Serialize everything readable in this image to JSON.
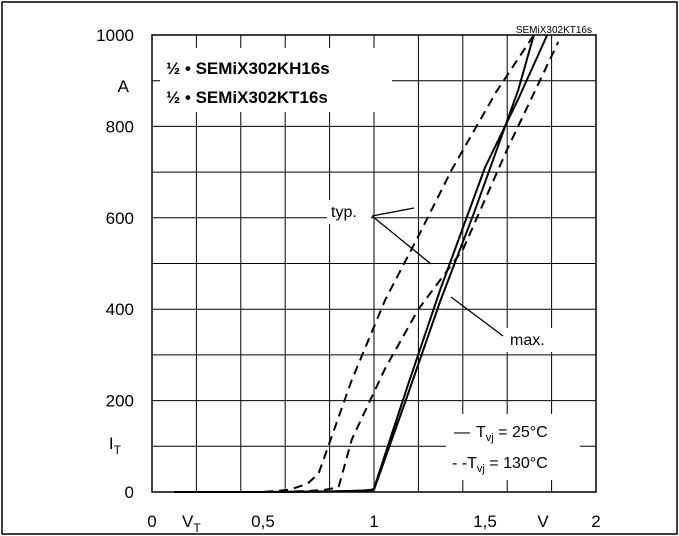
{
  "chart_data": {
    "type": "line",
    "doc_id": "SEMiX302KT16s",
    "title_lines": [
      "½ • SEMiX302KH16s",
      "½ • SEMiX302KT16s"
    ],
    "x_tick_labels": [
      "0",
      "0,5",
      "1",
      "1,5",
      "2"
    ],
    "x_ticks": [
      0,
      0.5,
      1,
      1.5,
      2
    ],
    "x_symbol": "V",
    "x_symbol_sub": "T",
    "x_unit": "V",
    "y_tick_labels": [
      "0",
      "200",
      "400",
      "600",
      "800",
      "1000"
    ],
    "y_ticks": [
      0,
      200,
      400,
      600,
      800,
      1000
    ],
    "y_symbol": "I",
    "y_symbol_sub": "T",
    "y_unit": "A",
    "xlim": [
      0,
      2
    ],
    "ylim": [
      0,
      1000
    ],
    "grid": true,
    "annotations": {
      "typ": "typ.",
      "max": "max."
    },
    "legend": {
      "entries": [
        {
          "marker": "—",
          "sym": "T",
          "sub": "vj",
          "value": " =  25°C"
        },
        {
          "marker": "- -",
          "sym": "T",
          "sub": "vj",
          "value": " = 130°C"
        }
      ]
    },
    "series": [
      {
        "style": "solid",
        "group": "typ",
        "x": [
          0.1,
          0.5,
          0.8,
          0.95,
          0.99,
          1.0,
          1.15,
          1.3,
          1.45,
          1.65,
          1.72
        ],
        "y": [
          0,
          0,
          1,
          3,
          4,
          5,
          210,
          420,
          610,
          880,
          1000
        ]
      },
      {
        "style": "dashed",
        "group": "typ",
        "x": [
          0.1,
          0.5,
          0.62,
          0.7,
          0.75,
          0.9,
          1.05,
          1.2,
          1.35,
          1.55,
          1.72
        ],
        "y": [
          0,
          0,
          5,
          18,
          40,
          245,
          420,
          560,
          705,
          875,
          1000
        ]
      },
      {
        "style": "solid",
        "group": "max",
        "x": [
          0.1,
          0.5,
          0.8,
          0.95,
          0.99,
          1.0,
          1.15,
          1.3,
          1.5,
          1.65,
          1.78
        ],
        "y": [
          0,
          0,
          1,
          3,
          5,
          8,
          230,
          445,
          710,
          860,
          1000
        ]
      },
      {
        "style": "dashed",
        "group": "max",
        "x": [
          0.1,
          0.5,
          0.7,
          0.78,
          0.84,
          0.9,
          1.05,
          1.2,
          1.4,
          1.6,
          1.83
        ],
        "y": [
          0,
          0,
          2,
          5,
          10,
          115,
          270,
          400,
          530,
          750,
          985
        ]
      }
    ]
  }
}
